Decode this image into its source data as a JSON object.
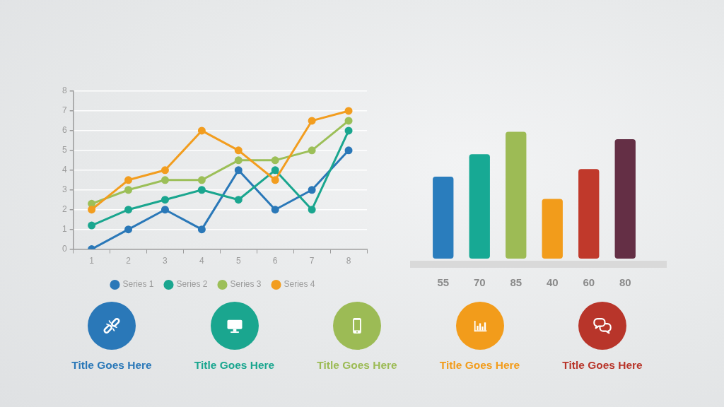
{
  "chart_data": [
    {
      "type": "line",
      "categories": [
        "1",
        "2",
        "3",
        "4",
        "5",
        "6",
        "7",
        "8"
      ],
      "series": [
        {
          "name": "Series 1",
          "color": "#2a78b8",
          "values": [
            0,
            1,
            2,
            1,
            4,
            2,
            3,
            5
          ]
        },
        {
          "name": "Series 2",
          "color": "#1aa68f",
          "values": [
            1.2,
            2,
            2.5,
            3,
            2.5,
            4,
            2,
            6
          ]
        },
        {
          "name": "Series 3",
          "color": "#9cbf58",
          "values": [
            2.3,
            3,
            3.5,
            3.5,
            4.5,
            4.5,
            5,
            6.5
          ]
        },
        {
          "name": "Series 4",
          "color": "#f29d1f",
          "values": [
            2,
            3.5,
            4,
            6,
            5,
            3.5,
            6.5,
            7
          ]
        }
      ],
      "ylim": [
        0,
        8
      ],
      "yticks": [
        0,
        1,
        2,
        3,
        4,
        5,
        6,
        7,
        8
      ],
      "grid": "y",
      "legend": "bottom",
      "marker": "circle"
    },
    {
      "type": "bar",
      "categories": [
        null,
        null,
        null,
        null,
        null,
        null
      ],
      "values": [
        55,
        70,
        85,
        40,
        60,
        80
      ],
      "colors": [
        "#2a7dbd",
        "#17a994",
        "#9dbb55",
        "#f29c1b",
        "#c0392b",
        "#642f45"
      ],
      "data_labels": true
    },
    {
      "type": "other",
      "annotations": [
        "Title Goes Here",
        "Title Goes Here",
        "Title Goes Here",
        "Title Goes Here",
        "Title Goes Here"
      ],
      "colors": [
        "#2a78b8",
        "#1aa68f",
        "#9cbb55",
        "#f29c1b",
        "#b8352a"
      ]
    }
  ]
}
